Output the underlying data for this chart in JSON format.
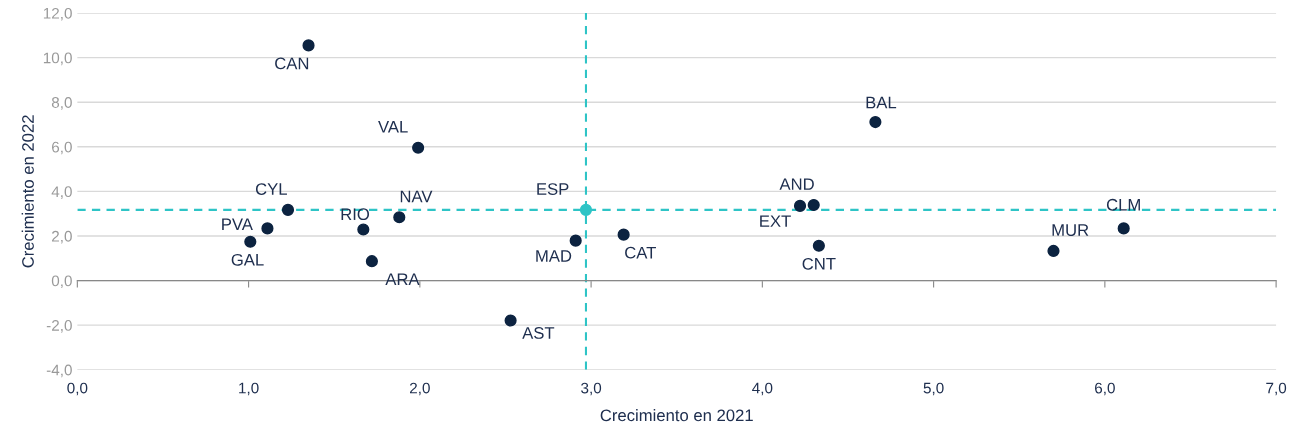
{
  "chart_data": {
    "type": "scatter",
    "xlabel": "Crecimiento en 2021",
    "ylabel": "Crecimiento en 2022",
    "series": [
      {
        "x": [
          1.35,
          1.99,
          4.66,
          1.23,
          1.11,
          1.01,
          1.67,
          1.88,
          1.72,
          2.53,
          2.91,
          2.97,
          3.19,
          4.3,
          4.22,
          4.33,
          5.7,
          6.11
        ],
        "values": [
          10.55,
          5.96,
          7.11,
          3.17,
          2.34,
          1.74,
          2.29,
          2.84,
          0.87,
          -1.79,
          1.79,
          3.17,
          2.06,
          3.39,
          3.35,
          1.56,
          1.33,
          2.34
        ],
        "colors": [
          "#0c2340",
          "#0c2340",
          "#0c2340",
          "#0c2340",
          "#0c2340",
          "#0c2340",
          "#0c2340",
          "#0c2340",
          "#0c2340",
          "#0c2340",
          "#0c2340",
          "#2ec4c6",
          "#0c2340",
          "#0c2340",
          "#0c2340",
          "#0c2340",
          "#0c2340",
          "#0c2340"
        ]
      }
    ],
    "annotations": [
      {
        "text": "CAN",
        "x": 1.35,
        "y": 10.55
      },
      {
        "text": "VAL",
        "x": 1.99,
        "y": 5.96
      },
      {
        "text": "BAL",
        "x": 4.66,
        "y": 7.11
      },
      {
        "text": "CYL",
        "x": 1.23,
        "y": 3.17
      },
      {
        "text": "PVA",
        "x": 1.11,
        "y": 2.34
      },
      {
        "text": "GAL",
        "x": 1.01,
        "y": 1.74
      },
      {
        "text": "RIO",
        "x": 1.67,
        "y": 2.29
      },
      {
        "text": "NAV",
        "x": 1.88,
        "y": 2.84
      },
      {
        "text": "ARA",
        "x": 1.72,
        "y": 0.87
      },
      {
        "text": "AST",
        "x": 2.53,
        "y": -1.79
      },
      {
        "text": "MAD",
        "x": 2.91,
        "y": 1.79
      },
      {
        "text": "ESP",
        "x": 2.97,
        "y": 3.17
      },
      {
        "text": "CAT",
        "x": 3.19,
        "y": 2.06
      },
      {
        "text": "AND",
        "x": 4.3,
        "y": 3.39
      },
      {
        "text": "EXT",
        "x": 4.22,
        "y": 3.35
      },
      {
        "text": "CNT",
        "x": 4.33,
        "y": 1.56
      },
      {
        "text": "MUR",
        "x": 5.7,
        "y": 1.33
      },
      {
        "text": "CLM",
        "x": 6.11,
        "y": 2.34
      }
    ],
    "ref_lines": [
      {
        "axis": "x",
        "value": 2.97,
        "color": "#2ec4c6",
        "line_style": "dashed"
      },
      {
        "axis": "y",
        "value": 3.17,
        "color": "#2ec4c6",
        "line_style": "dashed"
      }
    ],
    "xlim": [
      0,
      7
    ],
    "ylim": [
      -4,
      12
    ],
    "xticks": [
      {
        "value": 0,
        "label": "0,0"
      },
      {
        "value": 1,
        "label": "1,0"
      },
      {
        "value": 2,
        "label": "2,0"
      },
      {
        "value": 3,
        "label": "3,0"
      },
      {
        "value": 4,
        "label": "4,0"
      },
      {
        "value": 5,
        "label": "5,0"
      },
      {
        "value": 6,
        "label": "6,0"
      },
      {
        "value": 7,
        "label": "7,0"
      }
    ],
    "yticks": [
      {
        "value": -4,
        "label": "-4,0"
      },
      {
        "value": -2,
        "label": "-2,0"
      },
      {
        "value": 0,
        "label": "0,0"
      },
      {
        "value": 2,
        "label": "2,0"
      },
      {
        "value": 4,
        "label": "4,0"
      },
      {
        "value": 6,
        "label": "6,0"
      },
      {
        "value": 8,
        "label": "8,0"
      },
      {
        "value": 10,
        "label": "10,0"
      },
      {
        "value": 12,
        "label": "12,0"
      }
    ],
    "grid": "y",
    "marker": "circle",
    "legend": false
  }
}
